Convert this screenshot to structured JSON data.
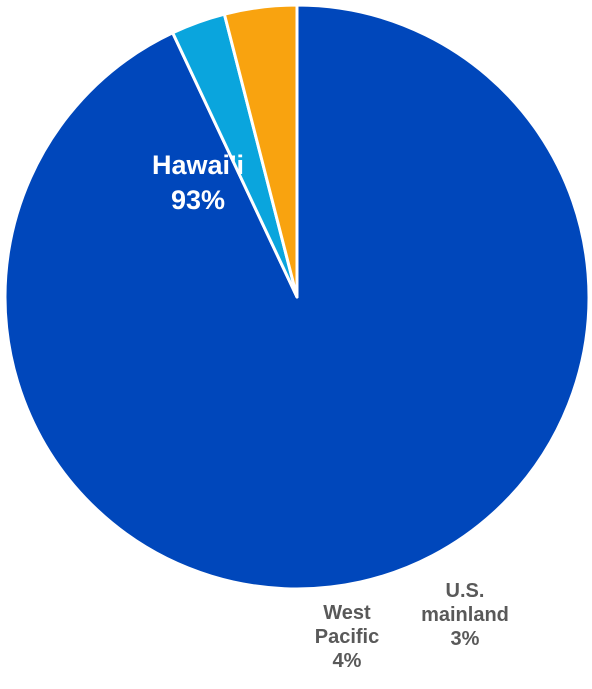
{
  "chart_data": {
    "type": "pie",
    "categories": [
      "Hawai'i",
      "U.S. mainland",
      "West Pacific"
    ],
    "values": [
      93,
      3,
      4
    ],
    "slices": [
      {
        "label_lines": [
          "Hawai'i",
          "93%"
        ],
        "value": 93,
        "color": "#0047BB",
        "label_color": "#ffffff"
      },
      {
        "label_lines": [
          "U.S.",
          "mainland",
          "3%"
        ],
        "value": 3,
        "color": "#0AA5DD",
        "label_color": "#595959"
      },
      {
        "label_lines": [
          "West",
          "Pacific",
          "4%"
        ],
        "value": 4,
        "color": "#F9A30F",
        "label_color": "#595959"
      }
    ],
    "start_angle_deg": 0,
    "direction": "clockwise",
    "legend": "none"
  }
}
